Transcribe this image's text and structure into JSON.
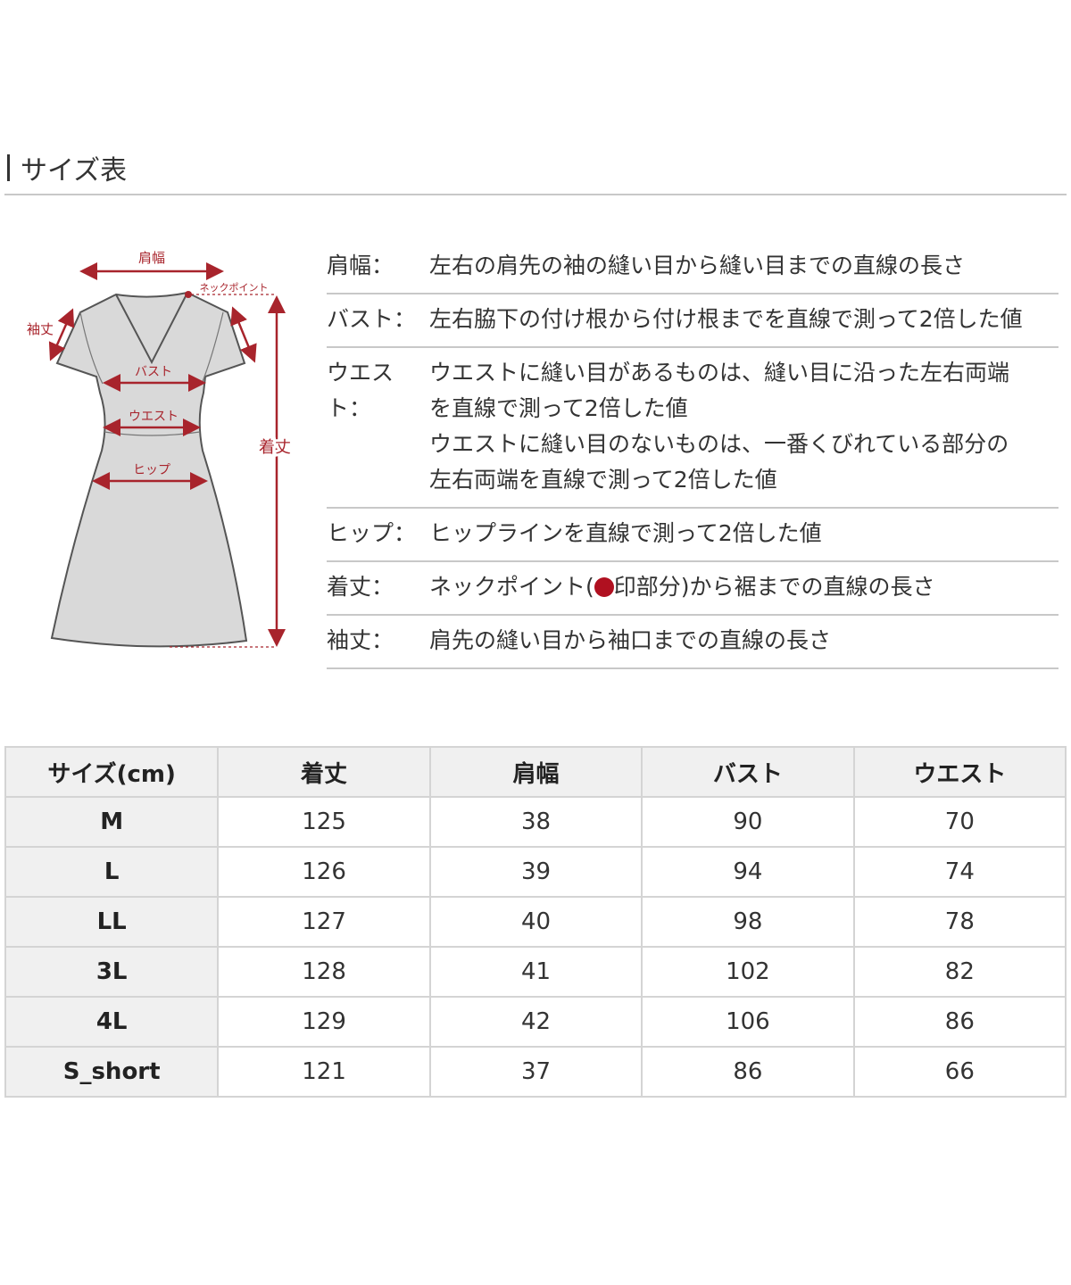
{
  "title": "サイズ表",
  "diagram": {
    "labels": {
      "shoulder": "肩幅",
      "neck_point": "ネックポイント",
      "sleeve": "袖丈",
      "bust": "バスト",
      "waist": "ウエスト",
      "hip": "ヒップ",
      "length": "着丈"
    },
    "accent_color": "#a8242c",
    "garment_color": "#d9d9d9"
  },
  "descriptions": [
    {
      "label": "肩幅：",
      "lines": [
        "左右の肩先の袖の縫い目から縫い目までの直線の長さ"
      ]
    },
    {
      "label": "バスト：",
      "lines": [
        "左右脇下の付け根から付け根までを直線で測って2倍した値"
      ]
    },
    {
      "label": "ウエスト：",
      "lines": [
        "ウエストに縫い目があるものは、縫い目に沿った左右両端",
        "を直線で測って2倍した値",
        "ウエストに縫い目のないものは、一番くびれている部分の",
        "左右両端を直線で測って2倍した値"
      ]
    },
    {
      "label": "ヒップ：",
      "lines": [
        "ヒップラインを直線で測って2倍した値"
      ]
    },
    {
      "label": "着丈：",
      "before_dot": "ネックポイント(",
      "after_dot": "印部分)から裾までの直線の長さ"
    },
    {
      "label": "袖丈：",
      "lines": [
        "肩先の縫い目から袖口までの直線の長さ"
      ]
    }
  ],
  "table": {
    "headers": [
      "サイズ(cm)",
      "着丈",
      "肩幅",
      "バスト",
      "ウエスト"
    ],
    "rows": [
      [
        "M",
        "125",
        "38",
        "90",
        "70"
      ],
      [
        "L",
        "126",
        "39",
        "94",
        "74"
      ],
      [
        "LL",
        "127",
        "40",
        "98",
        "78"
      ],
      [
        "3L",
        "128",
        "41",
        "102",
        "82"
      ],
      [
        "4L",
        "129",
        "42",
        "106",
        "86"
      ],
      [
        "S_short",
        "121",
        "37",
        "86",
        "66"
      ]
    ]
  }
}
